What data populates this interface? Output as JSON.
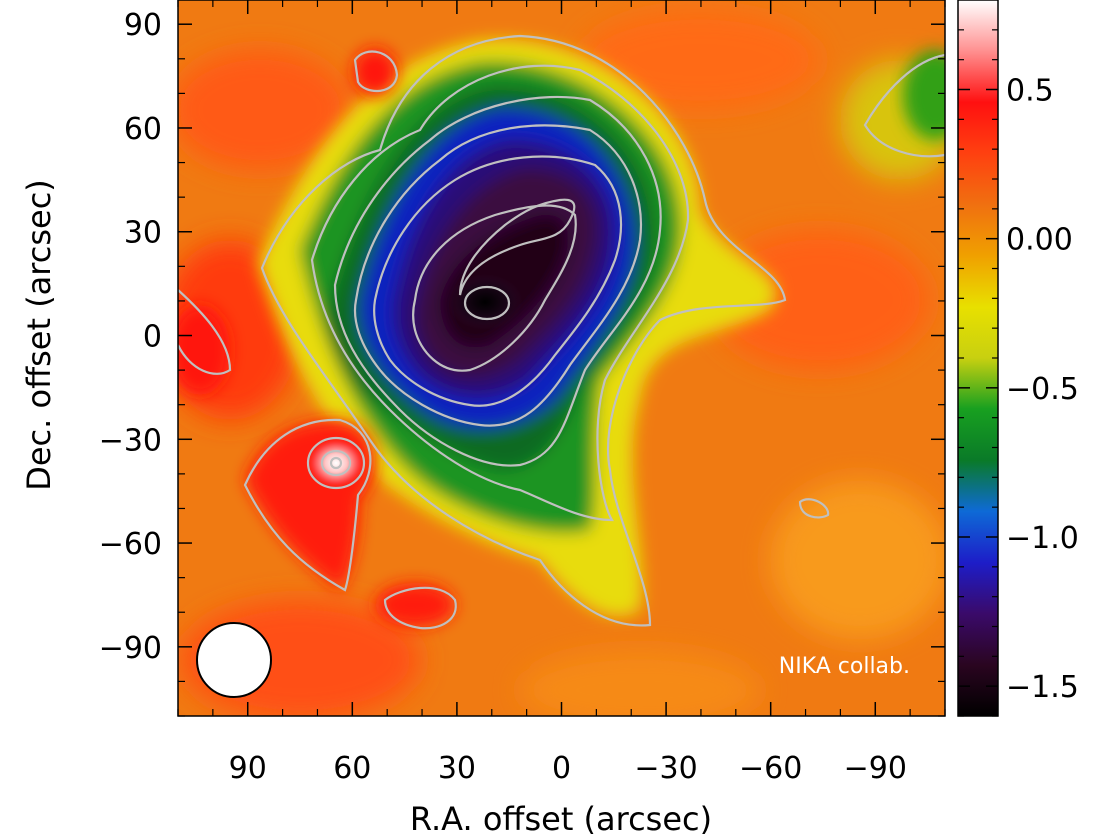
{
  "chart_data": {
    "type": "heatmap",
    "title": "",
    "xlabel": "R.A. offset (arcsec)",
    "ylabel": "Dec. offset (arcsec)",
    "xlim": [
      110,
      -110
    ],
    "ylim": [
      -110,
      97
    ],
    "x_ticks": [
      "90",
      "60",
      "30",
      "0",
      "−30",
      "−60",
      "−90"
    ],
    "x_tick_values": [
      90,
      60,
      30,
      0,
      -30,
      -60,
      -90
    ],
    "y_ticks": [
      "90",
      "60",
      "30",
      "0",
      "−30",
      "−60",
      "−90"
    ],
    "y_tick_values": [
      90,
      60,
      30,
      0,
      -30,
      -60,
      -90
    ],
    "colorbar": {
      "range": [
        -1.6,
        0.8
      ],
      "tick_labels": [
        "0.5",
        "0.00",
        "−0.5",
        "−1.0",
        "−1.5"
      ],
      "tick_values": [
        0.5,
        0.0,
        -0.5,
        -1.0,
        -1.5
      ],
      "colormap": [
        "#000000",
        "#2a0520",
        "#3a0a6a",
        "#1d1dc8",
        "#0e6ad6",
        "#0a7a28",
        "#18a020",
        "#c8d010",
        "#e8e000",
        "#f0a000",
        "#f07010",
        "#ff4010",
        "#ff1010",
        "#ff9090",
        "#ffffff"
      ]
    },
    "features": [
      {
        "kind": "decrement",
        "x": 20,
        "y": 12,
        "value": -1.6
      },
      {
        "kind": "point-source",
        "x": 63,
        "y": -37,
        "value": 0.8
      }
    ],
    "contour_color": "#c0c0c0",
    "beam_marker": "white circle, bottom-left",
    "annotation": "NIKA collab."
  }
}
